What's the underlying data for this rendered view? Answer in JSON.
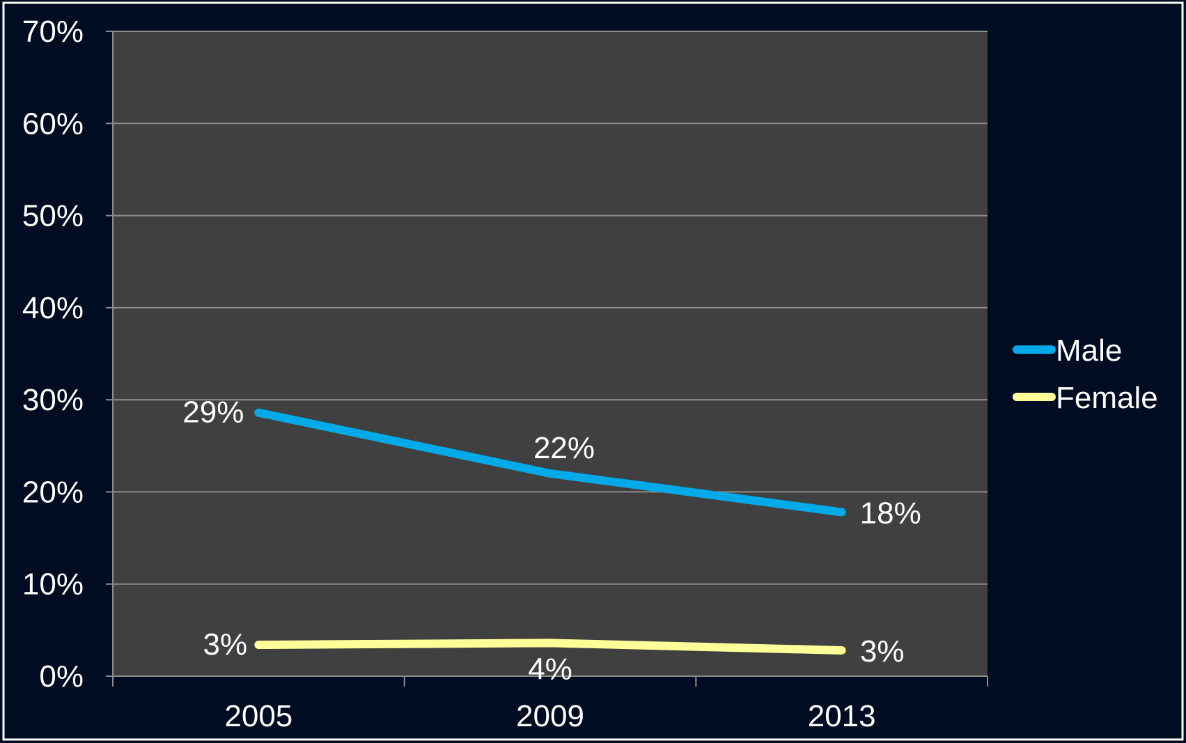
{
  "chart_data": {
    "type": "line",
    "categories": [
      "2005",
      "2009",
      "2013"
    ],
    "series": [
      {
        "name": "Male",
        "values": [
          28.6,
          22.0,
          17.8
        ],
        "labels": [
          "29%",
          "22%",
          "18%"
        ],
        "color": "#00a9e8"
      },
      {
        "name": "Female",
        "values": [
          3.4,
          3.6,
          2.8
        ],
        "labels": [
          "3%",
          "4%",
          "3%"
        ],
        "color": "#ffff99"
      }
    ],
    "ylim": [
      0,
      70
    ],
    "y_ticks": [
      0,
      10,
      20,
      30,
      40,
      50,
      60,
      70
    ],
    "y_tick_labels": [
      "0%",
      "10%",
      "20%",
      "30%",
      "40%",
      "50%",
      "60%",
      "70%"
    ],
    "grid": true,
    "legend_position": "right",
    "plot_background": "#404040",
    "page_background": "#000c22",
    "title": "",
    "xlabel": "",
    "ylabel": ""
  }
}
